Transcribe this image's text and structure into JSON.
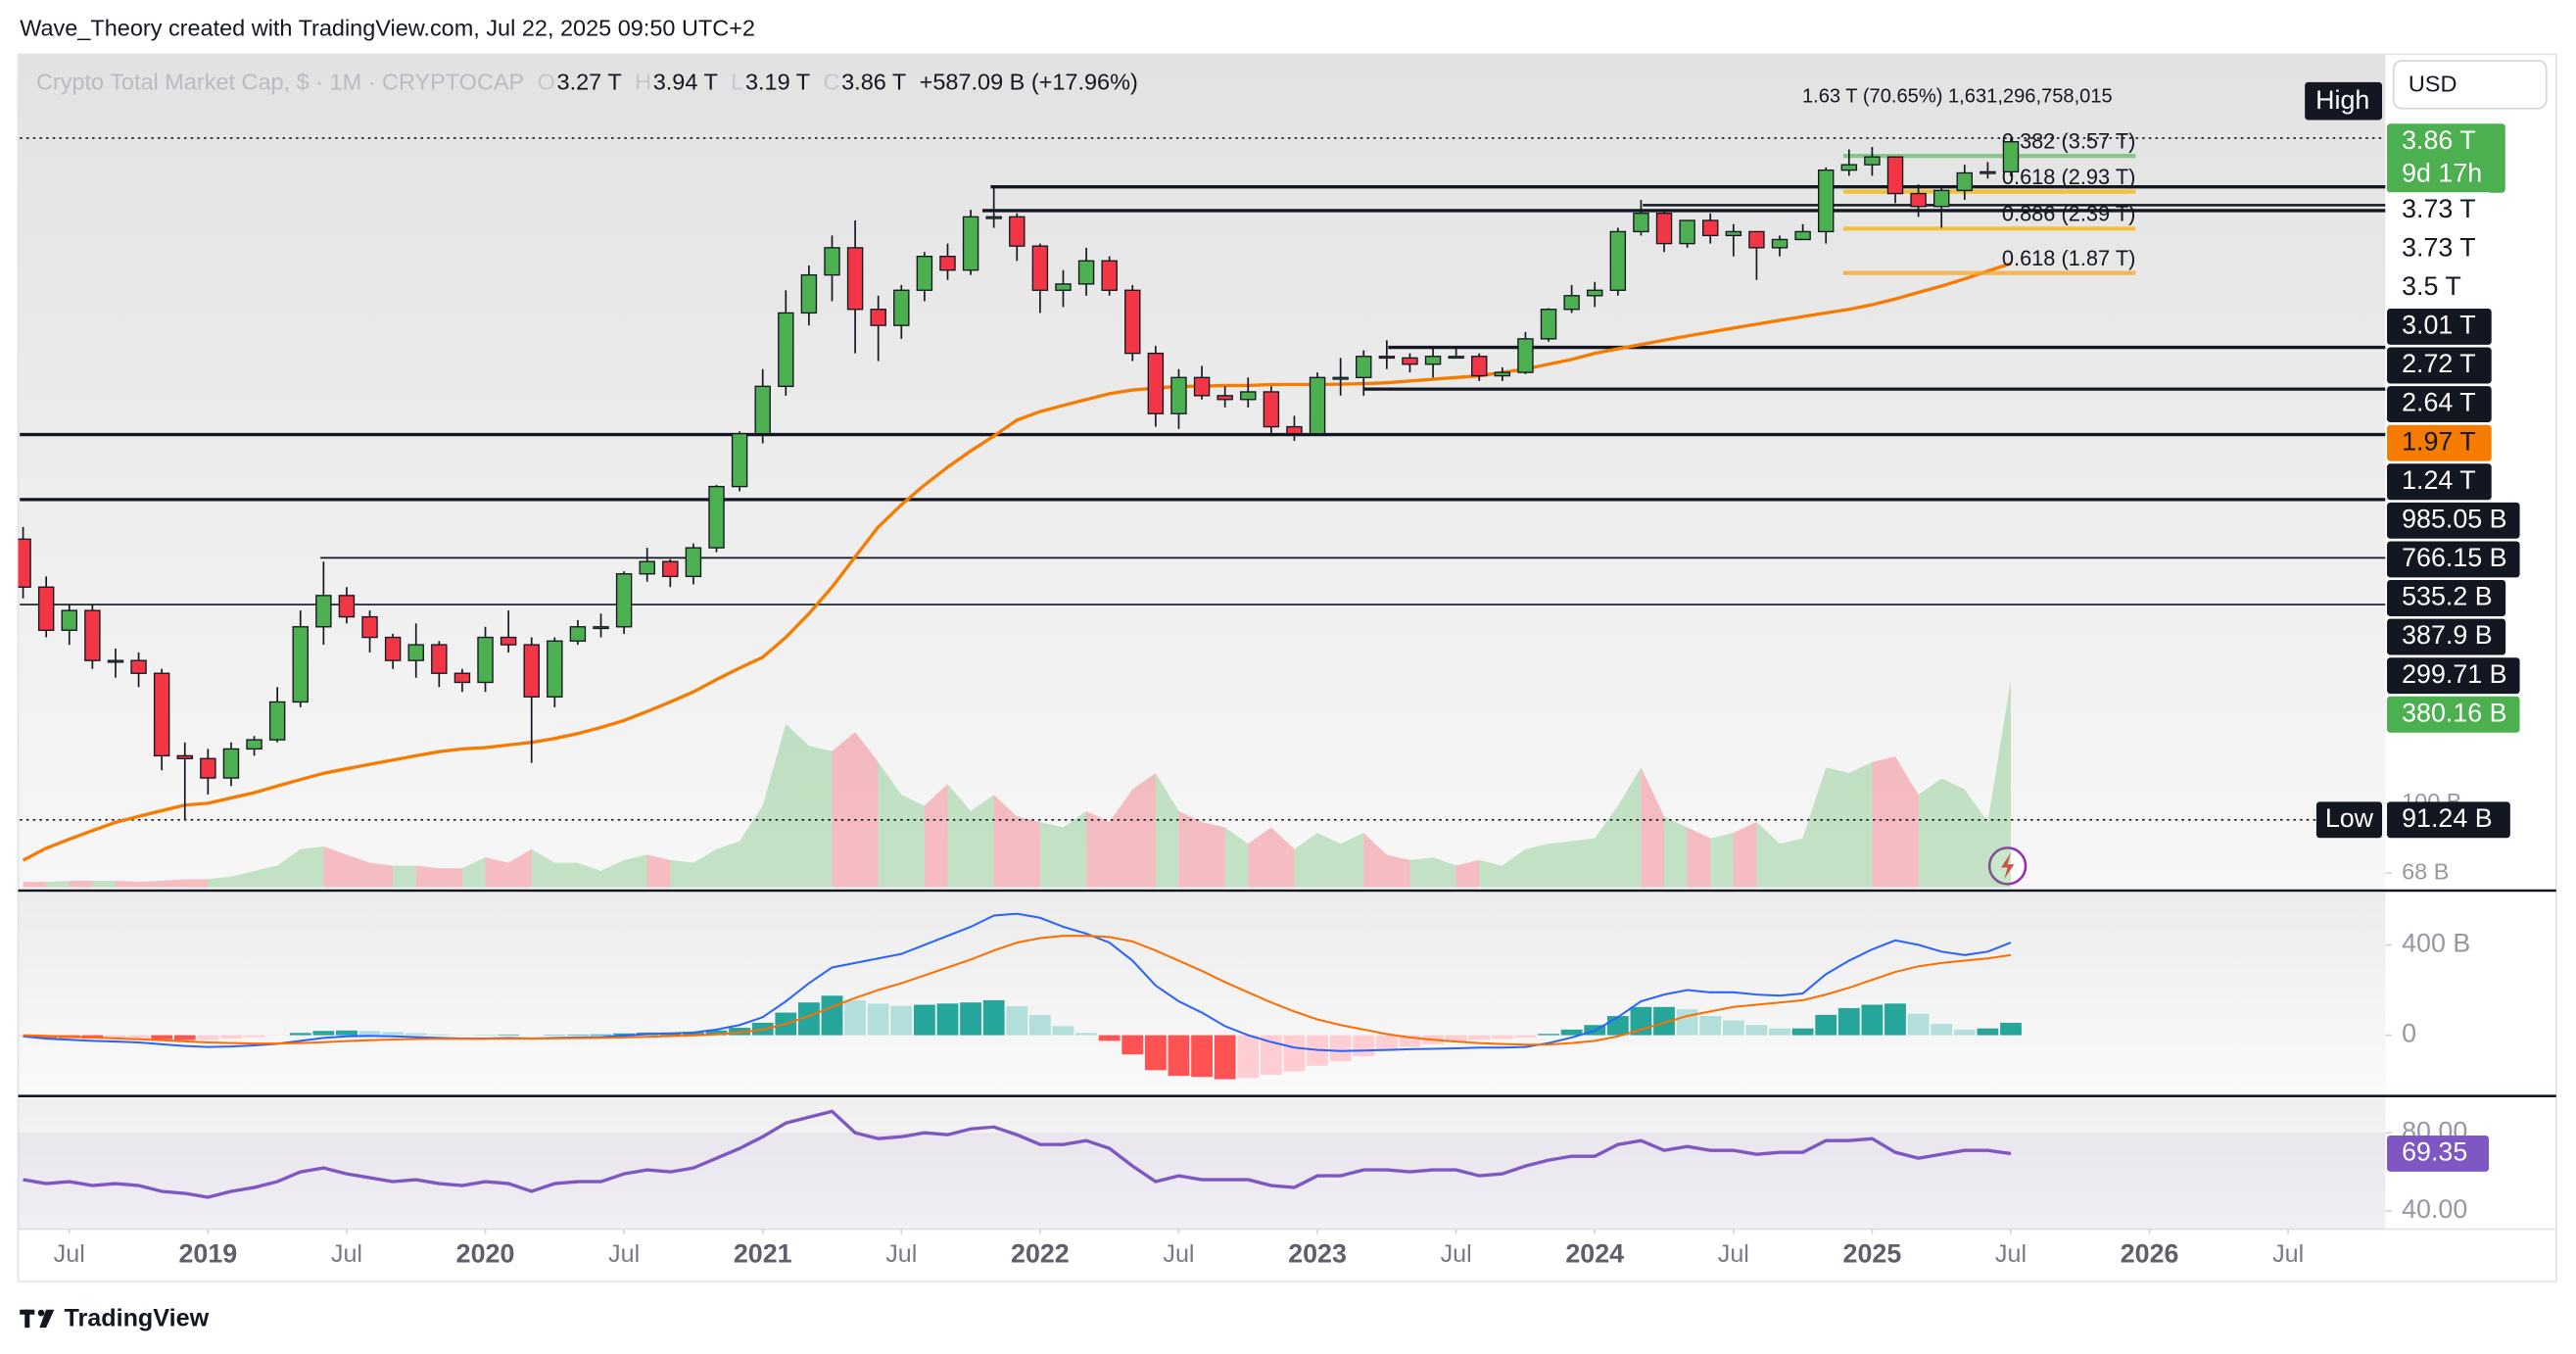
{
  "header": {
    "author_line": "Wave_Theory created with TradingView.com, Jul 22, 2025 09:50 UTC+2",
    "symbol": "Crypto Total Market Cap, $ · 1M · CRYPTOCAP",
    "o_key": "O",
    "h_key": "H",
    "l_key": "L",
    "c_key": "C",
    "change": "+587.09 B (+17.96%)"
  },
  "footer": {
    "brand": "TradingView"
  },
  "chart_data": {
    "type": "candlestick",
    "currency": "USD",
    "annotation": "1.63 T (70.65%) 1,631,296,758,015",
    "x": [
      "2018-05",
      "2018-06",
      "2018-07",
      "2018-08",
      "2018-09",
      "2018-10",
      "2018-11",
      "2018-12",
      "2019-01",
      "2019-02",
      "2019-03",
      "2019-04",
      "2019-05",
      "2019-06",
      "2019-07",
      "2019-08",
      "2019-09",
      "2019-10",
      "2019-11",
      "2019-12",
      "2020-01",
      "2020-02",
      "2020-03",
      "2020-04",
      "2020-05",
      "2020-06",
      "2020-07",
      "2020-08",
      "2020-09",
      "2020-10",
      "2020-11",
      "2020-12",
      "2021-01",
      "2021-02",
      "2021-03",
      "2021-04",
      "2021-05",
      "2021-06",
      "2021-07",
      "2021-08",
      "2021-09",
      "2021-10",
      "2021-11",
      "2021-12",
      "2022-01",
      "2022-02",
      "2022-03",
      "2022-04",
      "2022-05",
      "2022-06",
      "2022-07",
      "2022-08",
      "2022-09",
      "2022-10",
      "2022-11",
      "2022-12",
      "2023-01",
      "2023-02",
      "2023-03",
      "2023-04",
      "2023-05",
      "2023-06",
      "2023-07",
      "2023-08",
      "2023-09",
      "2023-10",
      "2023-11",
      "2023-12",
      "2024-01",
      "2024-02",
      "2024-03",
      "2024-04",
      "2024-05",
      "2024-06",
      "2024-07",
      "2024-08",
      "2024-09",
      "2024-10",
      "2024-11",
      "2024-12",
      "2025-01",
      "2025-02",
      "2025-03",
      "2025-04",
      "2025-05",
      "2025-06",
      "2025-07"
    ],
    "open": [
      430,
      330,
      260,
      290,
      220,
      220,
      205,
      130,
      128,
      115,
      135,
      142,
      175,
      265,
      315,
      280,
      250,
      220,
      240,
      205,
      195,
      250,
      240,
      180,
      245,
      265,
      265,
      355,
      380,
      350,
      410,
      575,
      770,
      1000,
      1500,
      1850,
      2150,
      1530,
      1400,
      1700,
      2050,
      1900,
      2550,
      2550,
      2170,
      1700,
      1760,
      2000,
      1700,
      1200,
      860,
      1050,
      950,
      930,
      970,
      800,
      770,
      1050,
      1050,
      1180,
      1170,
      1130,
      1180,
      1180,
      1060,
      1080,
      1300,
      1530,
      1650,
      1700,
      2350,
      2600,
      2200,
      2500,
      2300,
      2350,
      2150,
      2250,
      2350,
      3300,
      3400,
      3550,
      2900,
      2700,
      2950,
      3250,
      3270
    ],
    "high": [
      460,
      350,
      300,
      300,
      235,
      230,
      210,
      140,
      135,
      140,
      145,
      190,
      290,
      380,
      330,
      290,
      255,
      270,
      245,
      210,
      265,
      290,
      250,
      250,
      275,
      285,
      360,
      410,
      385,
      420,
      580,
      780,
      1100,
      1700,
      1950,
      2300,
      2500,
      1650,
      1750,
      2100,
      2200,
      2650,
      3000,
      2600,
      2200,
      1900,
      2150,
      2050,
      1750,
      1250,
      1100,
      1120,
      1000,
      1050,
      1000,
      850,
      1080,
      1170,
      1220,
      1290,
      1200,
      1250,
      1250,
      1200,
      1110,
      1350,
      1540,
      1750,
      1780,
      2400,
      2800,
      2650,
      2500,
      2600,
      2450,
      2350,
      2300,
      2450,
      3350,
      3700,
      3750,
      3550,
      3050,
      3000,
      3400,
      3450,
      3940
    ],
    "low": [
      310,
      250,
      240,
      210,
      200,
      190,
      120,
      91.24,
      105,
      110,
      130,
      140,
      170,
      240,
      270,
      230,
      210,
      200,
      190,
      185,
      185,
      230,
      125,
      170,
      240,
      250,
      255,
      340,
      330,
      335,
      400,
      560,
      730,
      950,
      1400,
      1600,
      1200,
      1150,
      1300,
      1600,
      1800,
      1850,
      2400,
      2000,
      1500,
      1550,
      1650,
      1650,
      1150,
      800,
      790,
      930,
      890,
      890,
      760,
      740,
      765,
      950,
      950,
      1100,
      1080,
      1050,
      1170,
      1030,
      1030,
      1070,
      1280,
      1500,
      1550,
      1650,
      2300,
      2100,
      2150,
      2200,
      2050,
      1800,
      2050,
      2250,
      2200,
      3200,
      3200,
      2750,
      2550,
      2400,
      2800,
      3150,
      3190
    ],
    "close": [
      330,
      260,
      290,
      220,
      220,
      205,
      130,
      128,
      115,
      135,
      142,
      175,
      265,
      315,
      280,
      250,
      220,
      240,
      205,
      195,
      250,
      240,
      180,
      245,
      265,
      265,
      355,
      380,
      350,
      410,
      575,
      770,
      1000,
      1500,
      1850,
      2150,
      1530,
      1400,
      1700,
      2050,
      1900,
      2550,
      2550,
      2170,
      1700,
      1760,
      2000,
      1700,
      1200,
      860,
      1050,
      950,
      930,
      970,
      800,
      770,
      1050,
      1050,
      1180,
      1170,
      1130,
      1180,
      1180,
      1060,
      1080,
      1300,
      1530,
      1650,
      1700,
      2350,
      2600,
      2200,
      2500,
      2300,
      2350,
      2150,
      2250,
      2350,
      3300,
      3400,
      3550,
      2900,
      2700,
      2950,
      3250,
      3270,
      3860
    ],
    "ohlc_labels": {
      "open": "3.27 T",
      "high": "3.94 T",
      "low": "3.19 T",
      "close": "3.86 T"
    },
    "countdown": "9d 17h",
    "high_label": "High",
    "low_label": "Low",
    "low_value_label": "91.24 B",
    "up_color": "#4caf50",
    "down_color": "#f23645",
    "log_scale": true,
    "ylim": [
      62.3,
      6260
    ],
    "yticks": [
      {
        "value": 100,
        "label": "100 B"
      },
      {
        "value": 68,
        "label": "68 B"
      }
    ],
    "xticks": [
      {
        "value": "2018-07",
        "label": "Jul"
      },
      {
        "value": "2019-01",
        "label": "2019"
      },
      {
        "value": "2019-07",
        "label": "Jul"
      },
      {
        "value": "2020-01",
        "label": "2020"
      },
      {
        "value": "2020-07",
        "label": "Jul"
      },
      {
        "value": "2021-01",
        "label": "2021"
      },
      {
        "value": "2021-07",
        "label": "Jul"
      },
      {
        "value": "2022-01",
        "label": "2022"
      },
      {
        "value": "2022-07",
        "label": "Jul"
      },
      {
        "value": "2023-01",
        "label": "2023"
      },
      {
        "value": "2023-07",
        "label": "Jul"
      },
      {
        "value": "2024-01",
        "label": "2024"
      },
      {
        "value": "2024-07",
        "label": "Jul"
      },
      {
        "value": "2025-01",
        "label": "2025"
      },
      {
        "value": "2025-07",
        "label": "Jul"
      },
      {
        "value": "2026-01",
        "label": "2026"
      },
      {
        "value": "2026-07",
        "label": "Jul"
      }
    ],
    "levels": [
      {
        "value": 3010,
        "label": "3.01 T"
      },
      {
        "value": 2720,
        "label": "2.72 T"
      },
      {
        "value": 2640,
        "label": "2.64 T"
      },
      {
        "value": 1240,
        "label": "1.24 T"
      },
      {
        "value": 985.05,
        "label": "985.05 B"
      },
      {
        "value": 766.15,
        "label": "766.15 B"
      },
      {
        "value": 535.2,
        "label": "535.2 B"
      },
      {
        "value": 387.9,
        "label": "387.9 B"
      },
      {
        "value": 299.71,
        "label": "299.71 B"
      }
    ],
    "fibs": [
      {
        "value": 3570,
        "label": "0.382 (3.57 T)",
        "color": "#66bb6a"
      },
      {
        "value": 2930,
        "label": "0.618 (2.93 T)",
        "color": "#f5b400"
      },
      {
        "value": 2390,
        "label": "0.886 (2.39 T)",
        "color": "#f5b400"
      },
      {
        "value": 1870,
        "label": "0.618 (1.87 T)",
        "color": "#f5a623"
      }
    ],
    "fib_price_labels": [
      "3.73 T",
      "3.73 T",
      "3.5 T"
    ],
    "ma": {
      "color": "#f57c00",
      "last_label": "1.97 T",
      "values": [
        73,
        78,
        82,
        86,
        90,
        93,
        96,
        99,
        100,
        103,
        106,
        110,
        114,
        118,
        121,
        124,
        127,
        130,
        133,
        135,
        136,
        138,
        140,
        143,
        147,
        152,
        158,
        166,
        175,
        185,
        198,
        211,
        224,
        250,
        285,
        330,
        390,
        460,
        520,
        580,
        640,
        700,
        760,
        830,
        870,
        900,
        930,
        960,
        980,
        990,
        1000,
        1000,
        1005,
        1005,
        1010,
        1010,
        1010,
        1012,
        1015,
        1020,
        1030,
        1040,
        1050,
        1060,
        1080,
        1100,
        1130,
        1160,
        1200,
        1230,
        1260,
        1290,
        1320,
        1350,
        1380,
        1410,
        1440,
        1470,
        1500,
        1530,
        1570,
        1620,
        1680,
        1740,
        1810,
        1890,
        1970
      ]
    },
    "volume": {
      "last_label": "380.16 B",
      "vlim": [
        0,
        1530
      ],
      "values": [
        10,
        10,
        12,
        12,
        12,
        10,
        12,
        15,
        15,
        20,
        30,
        40,
        70,
        75,
        60,
        45,
        40,
        40,
        35,
        35,
        55,
        45,
        70,
        45,
        45,
        30,
        50,
        60,
        50,
        45,
        70,
        85,
        150,
        300,
        260,
        250,
        285,
        230,
        170,
        150,
        190,
        140,
        170,
        130,
        120,
        110,
        140,
        120,
        180,
        210,
        140,
        120,
        110,
        80,
        110,
        70,
        100,
        80,
        100,
        60,
        50,
        55,
        40,
        50,
        40,
        70,
        80,
        85,
        90,
        150,
        220,
        130,
        110,
        90,
        100,
        120,
        80,
        90,
        220,
        210,
        230,
        240,
        170,
        200,
        180,
        120,
        380.16
      ]
    },
    "macd": {
      "ylim": [
        -262,
        633
      ],
      "yticks": [
        {
          "value": 400,
          "label": "400 B"
        },
        0
      ],
      "macd": {
        "color": "#2962ff",
        "values": [
          -5,
          -15,
          -20,
          -25,
          -28,
          -32,
          -40,
          -48,
          -52,
          -50,
          -45,
          -38,
          -25,
          -12,
          -5,
          -3,
          -5,
          -8,
          -12,
          -15,
          -15,
          -12,
          -15,
          -12,
          -10,
          -8,
          -2,
          5,
          8,
          12,
          25,
          45,
          80,
          150,
          230,
          300,
          320,
          340,
          360,
          400,
          440,
          480,
          530,
          538,
          520,
          480,
          450,
          410,
          330,
          220,
          150,
          100,
          40,
          0,
          -30,
          -55,
          -65,
          -70,
          -68,
          -65,
          -62,
          -60,
          -58,
          -55,
          -55,
          -52,
          -35,
          -10,
          20,
          80,
          150,
          180,
          200,
          190,
          190,
          180,
          175,
          185,
          270,
          330,
          380,
          420,
          400,
          370,
          355,
          370,
          410
        ]
      },
      "signal": {
        "color": "#ff6d00",
        "values": [
          0,
          -3,
          -7,
          -10,
          -14,
          -18,
          -22,
          -27,
          -32,
          -35,
          -37,
          -37,
          -35,
          -31,
          -26,
          -22,
          -19,
          -17,
          -16,
          -16,
          -16,
          -15,
          -15,
          -14,
          -13,
          -12,
          -10,
          -7,
          -4,
          -1,
          4,
          12,
          25,
          50,
          85,
          125,
          165,
          200,
          230,
          265,
          300,
          335,
          375,
          410,
          430,
          440,
          440,
          435,
          415,
          375,
          330,
          285,
          235,
          190,
          145,
          105,
          70,
          45,
          25,
          5,
          -10,
          -20,
          -28,
          -35,
          -39,
          -42,
          -41,
          -35,
          -25,
          -5,
          25,
          55,
          85,
          105,
          125,
          135,
          145,
          155,
          180,
          210,
          245,
          280,
          305,
          320,
          330,
          340,
          355
        ]
      },
      "hist": {
        "values": [
          -5,
          -12,
          -13,
          -15,
          -14,
          -14,
          -18,
          -21,
          -20,
          -15,
          -8,
          -1,
          10,
          19,
          21,
          19,
          14,
          9,
          4,
          1,
          1,
          3,
          0,
          2,
          3,
          4,
          8,
          12,
          12,
          13,
          21,
          33,
          55,
          100,
          145,
          175,
          155,
          140,
          130,
          135,
          140,
          145,
          155,
          128,
          90,
          40,
          10,
          -25,
          -85,
          -155,
          -180,
          -185,
          -195,
          -190,
          -175,
          -160,
          -135,
          -115,
          -93,
          -70,
          -52,
          -40,
          -30,
          -20,
          -16,
          -10,
          6,
          25,
          45,
          85,
          125,
          125,
          115,
          85,
          65,
          45,
          30,
          30,
          90,
          120,
          135,
          140,
          95,
          50,
          25,
          30,
          55
        ]
      }
    },
    "rsi": {
      "color": "#7e57c2",
      "ylim": [
        29,
        98
      ],
      "yticks": [
        {
          "value": 80,
          "label": "80.00"
        },
        {
          "value": 40,
          "label": "40.00"
        }
      ],
      "values": [
        56,
        54,
        55,
        53,
        54,
        53,
        50,
        49,
        47,
        50,
        52,
        55,
        60,
        62,
        59,
        57,
        55,
        56,
        54,
        53,
        55,
        54,
        50,
        54,
        55,
        55,
        59,
        61,
        60,
        62,
        67,
        72,
        78,
        85,
        88,
        91,
        80,
        77,
        78,
        80,
        79,
        82,
        83,
        79,
        74,
        74,
        76,
        72,
        63,
        55,
        58,
        56,
        56,
        56,
        53,
        52,
        58,
        58,
        61,
        61,
        60,
        61,
        61,
        58,
        59,
        63,
        66,
        68,
        68,
        74,
        76,
        71,
        73,
        71,
        71,
        69,
        70,
        70,
        76,
        76,
        77,
        70,
        67,
        69,
        71,
        71,
        69.35
      ]
    }
  }
}
